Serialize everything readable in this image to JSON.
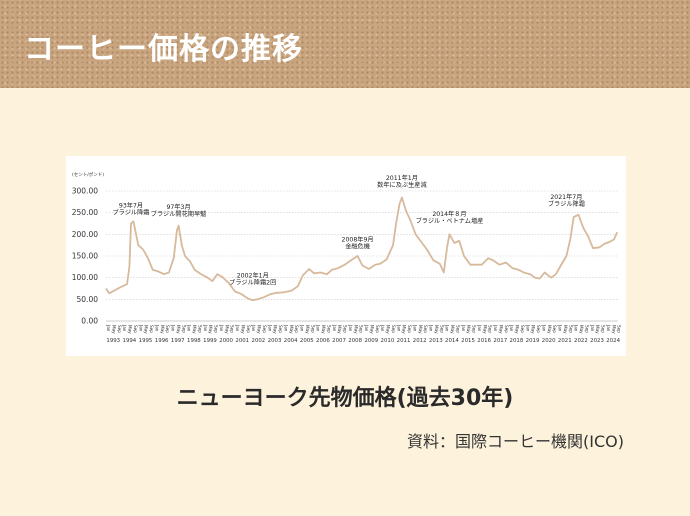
{
  "header": {
    "title": "コーヒー価格の推移"
  },
  "caption": "ニューヨーク先物価格(過去30年)",
  "source": "資料：国際コーヒー機関(ICO)",
  "colors": {
    "line": "#d7b99c",
    "header_bg": "#c9a57f",
    "page_bg": "#fdf2dc",
    "grid": "#cccccc"
  },
  "chart_data": {
    "type": "line",
    "title": "",
    "unit_label": "(セント/ポンド)",
    "xlabel": "",
    "ylabel": "",
    "xlim": [
      1993.0,
      2024.75
    ],
    "ylim": [
      0,
      300
    ],
    "yticks": [
      "0.00",
      "50.00",
      "100.00",
      "150.00",
      "200.00",
      "250.00",
      "300.00"
    ],
    "ytick_values": [
      0,
      50,
      100,
      150,
      200,
      250,
      300
    ],
    "years": [
      "1993",
      "1994",
      "1995",
      "1996",
      "1997",
      "1998",
      "1999",
      "2000",
      "2001",
      "2002",
      "2003",
      "2004",
      "2005",
      "2006",
      "2007",
      "2008",
      "2009",
      "2010",
      "2011",
      "2012",
      "2013",
      "2014",
      "2015",
      "2016",
      "2017",
      "2018",
      "2019",
      "2020",
      "2021",
      "2022",
      "2023",
      "2024"
    ],
    "months_shown": [
      "Jan",
      "May",
      "Sep"
    ],
    "grid": true,
    "series": [
      {
        "x": [
          1993.0,
          1993.2,
          1993.5,
          1993.9,
          1994.3,
          1994.45,
          1994.55,
          1994.7,
          1995.0,
          1995.3,
          1995.6,
          1995.9,
          1996.2,
          1996.6,
          1996.9,
          1997.2,
          1997.4,
          1997.5,
          1997.7,
          1997.9,
          1998.2,
          1998.5,
          1998.9,
          1999.3,
          1999.6,
          1999.9,
          2000.2,
          2000.6,
          2001.0,
          2001.4,
          2001.8,
          2002.1,
          2002.4,
          2002.8,
          2003.2,
          2003.6,
          2004.0,
          2004.5,
          2004.9,
          2005.2,
          2005.6,
          2005.9,
          2006.3,
          2006.7,
          2007.0,
          2007.4,
          2007.8,
          2008.2,
          2008.6,
          2008.9,
          2009.3,
          2009.7,
          2010.0,
          2010.4,
          2010.8,
          2011.0,
          2011.2,
          2011.35,
          2011.6,
          2011.9,
          2012.2,
          2012.6,
          2012.9,
          2013.3,
          2013.7,
          2013.95,
          2014.15,
          2014.3,
          2014.6,
          2014.9,
          2015.2,
          2015.6,
          2015.9,
          2016.3,
          2016.7,
          2017.0,
          2017.4,
          2017.8,
          2018.2,
          2018.6,
          2018.9,
          2019.3,
          2019.6,
          2019.9,
          2020.2,
          2020.6,
          2020.9,
          2021.2,
          2021.55,
          2021.8,
          2022.0,
          2022.3,
          2022.6,
          2022.9,
          2023.2,
          2023.6,
          2023.9,
          2024.2,
          2024.5,
          2024.7
        ],
        "y": [
          75,
          64,
          70,
          78,
          85,
          125,
          225,
          230,
          175,
          165,
          145,
          118,
          115,
          108,
          112,
          145,
          210,
          220,
          175,
          150,
          138,
          118,
          108,
          100,
          92,
          108,
          102,
          88,
          68,
          62,
          52,
          48,
          50,
          55,
          62,
          65,
          66,
          70,
          80,
          105,
          120,
          110,
          112,
          108,
          118,
          122,
          130,
          140,
          150,
          128,
          120,
          130,
          132,
          142,
          175,
          228,
          270,
          285,
          255,
          230,
          200,
          180,
          165,
          140,
          132,
          112,
          170,
          200,
          180,
          185,
          150,
          130,
          130,
          130,
          145,
          140,
          130,
          135,
          122,
          118,
          112,
          108,
          100,
          98,
          112,
          100,
          108,
          128,
          150,
          190,
          240,
          245,
          215,
          195,
          168,
          170,
          178,
          182,
          188,
          205
        ]
      }
    ],
    "annotations": [
      {
        "year": "93年7月",
        "event": "ブラジル降霜"
      },
      {
        "year": "97年3月",
        "event": "ブラジル開花期早魃"
      },
      {
        "year": "2002年1月",
        "event": "ブラジル降霜2回"
      },
      {
        "year": "2008年9月",
        "event": "金融危機"
      },
      {
        "year": "2011年1月",
        "event": "数年に及ぶ生産減"
      },
      {
        "year": "2014年８月",
        "event": "ブラジル・ベトナム増産"
      },
      {
        "year": "2021年7月",
        "event": "ブラジル降霜"
      }
    ]
  }
}
